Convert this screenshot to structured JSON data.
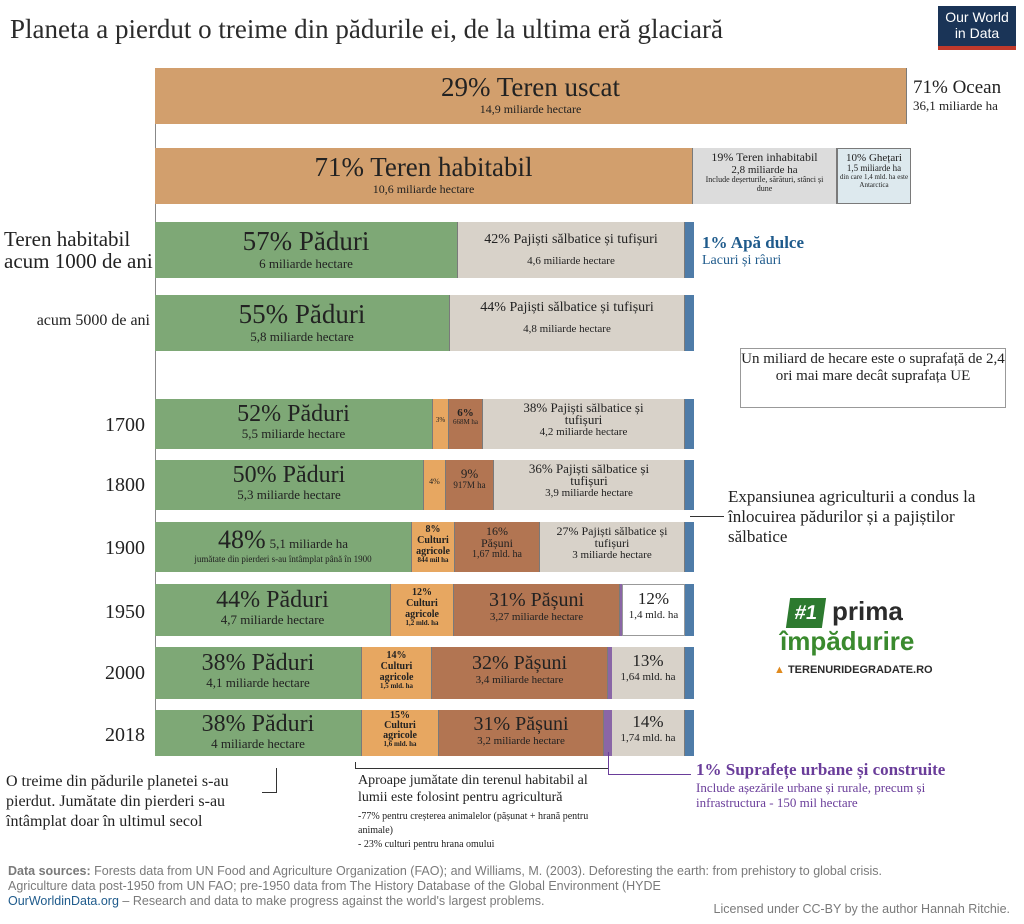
{
  "title": "Planeta a pierdut o treime din pădurile ei, de la ultima eră glaciară",
  "logo": {
    "line1": "Our World",
    "line2": "in Data",
    "bg": "#1a3457",
    "accent": "#c0392b"
  },
  "colors": {
    "land": "#d29f6d",
    "forest": "#7ea876",
    "grass": "#d8d2c9",
    "crops": "#e7a761",
    "pasture": "#b27552",
    "freshwater": "#4f7ca8",
    "urban": "#8a66a6",
    "glaciers": "#dde9ee",
    "uninhabitable": "#dcdcdc"
  },
  "chart_data": {
    "type": "bar",
    "orientation": "horizontal-stacked",
    "rows": [
      {
        "label": "",
        "segments": [
          {
            "name": "Teren uscat",
            "pct": 29,
            "text": "29% Teren uscat",
            "sub": "14,9 miliarde hectare"
          },
          {
            "name": "Ocean",
            "pct": 71,
            "text": "71% Ocean",
            "sub": "36,1 miliarde ha"
          }
        ]
      },
      {
        "label": "",
        "segments": [
          {
            "name": "Teren habitabil",
            "pct": 71,
            "text": "71% Teren habitabil",
            "sub": "10,6 miliarde hectare"
          },
          {
            "name": "Teren inhabitabil",
            "pct": 19,
            "text": "19% Teren inhabitabil",
            "sub": "2,8 miliarde ha",
            "note": "Include deșerturile, sărături, stânci și dune"
          },
          {
            "name": "Ghețari",
            "pct": 10,
            "text": "10% Ghețari",
            "sub": "1,5 miliarde ha",
            "note": "din care 1,4 mld. ha este Antarctica"
          }
        ]
      },
      {
        "label": "Teren habitabil acum 1000 de ani",
        "segments": [
          {
            "name": "Păduri",
            "pct": 57,
            "text": "57% Păduri",
            "sub": "6 miliarde hectare"
          },
          {
            "name": "Pajiști sălbatice și tufișuri",
            "pct": 42,
            "text": "42% Pajiști sălbatice și tufișuri",
            "sub": "4,6 miliarde hectare"
          },
          {
            "name": "Apă dulce",
            "pct": 1
          }
        ]
      },
      {
        "label": "acum 5000 de ani",
        "segments": [
          {
            "name": "Păduri",
            "pct": 55,
            "text": "55% Păduri",
            "sub": "5,8 miliarde hectare"
          },
          {
            "name": "Pajiști sălbatice și tufișuri",
            "pct": 44,
            "text": "44% Pajiști sălbatice și tufișuri",
            "sub": "4,8 miliarde hectare"
          },
          {
            "name": "Apă dulce",
            "pct": 1
          }
        ]
      },
      {
        "label": "1700",
        "segments": [
          {
            "name": "Păduri",
            "pct": 52,
            "text": "52% Păduri",
            "sub": "5,5 miliarde hectare"
          },
          {
            "name": "Culturi agricole",
            "pct": 3,
            "text": "3%"
          },
          {
            "name": "Pășuni",
            "pct": 6,
            "text": "6%",
            "sub": "668M ha"
          },
          {
            "name": "Pajiști sălbatice și tufișuri",
            "pct": 38,
            "text": "38% Pajiști sălbatice și tufișuri",
            "sub": "4,2 miliarde hectare"
          },
          {
            "name": "Apă dulce",
            "pct": 1
          }
        ]
      },
      {
        "label": "1800",
        "segments": [
          {
            "name": "Păduri",
            "pct": 50,
            "text": "50% Păduri",
            "sub": "5,3 miliarde hectare"
          },
          {
            "name": "Culturi agricole",
            "pct": 4,
            "text": "4%"
          },
          {
            "name": "Pășuni",
            "pct": 9,
            "text": "9%",
            "sub": "917M ha"
          },
          {
            "name": "Pajiști sălbatice și tufișuri",
            "pct": 36,
            "text": "36% Pajiști sălbatice și tufișuri",
            "sub": "3,9 miliarde hectare"
          },
          {
            "name": "Apă dulce",
            "pct": 1
          }
        ]
      },
      {
        "label": "1900",
        "segments": [
          {
            "name": "Păduri",
            "pct": 48,
            "text": "48%",
            "text2": "5,1 miliarde ha",
            "sub": "jumătate din pierderi s-au întâmplat până în 1900"
          },
          {
            "name": "Culturi agricole",
            "pct": 8,
            "text": "8% Culturi agricole",
            "sub": "844 mil ha"
          },
          {
            "name": "Pășuni",
            "pct": 16,
            "text": "16% Pășuni",
            "sub": "1,67 mld. ha"
          },
          {
            "name": "Pajiști sălbatice și tufișuri",
            "pct": 27,
            "text": "27% Pajiști sălbatice și tufișuri",
            "sub": "3 miliarde hectare"
          },
          {
            "name": "Apă dulce",
            "pct": 1
          }
        ]
      },
      {
        "label": "1950",
        "segments": [
          {
            "name": "Păduri",
            "pct": 44,
            "text": "44% Păduri",
            "sub": "4,7 miliarde hectare"
          },
          {
            "name": "Culturi agricole",
            "pct": 12,
            "text": "12% Culturi agricole",
            "sub": "1,2 mld. ha"
          },
          {
            "name": "Pășuni",
            "pct": 31,
            "text": "31% Pășuni",
            "sub": "3,27 miliarde hectare"
          },
          {
            "name": "Urban",
            "pct": 0.3
          },
          {
            "name": "Pajiști sălbatice și tufișuri",
            "pct": 12,
            "text": "12%",
            "sub": "1,4 mld. ha"
          },
          {
            "name": "Apă dulce",
            "pct": 1
          }
        ]
      },
      {
        "label": "2000",
        "segments": [
          {
            "name": "Păduri",
            "pct": 38,
            "text": "38% Păduri",
            "sub": "4,1 miliarde hectare"
          },
          {
            "name": "Culturi agricole",
            "pct": 14,
            "text": "14% Culturi agricole",
            "sub": "1,5 mld. ha"
          },
          {
            "name": "Pășuni",
            "pct": 32,
            "text": "32% Pășuni",
            "sub": "3,4 miliarde hectare"
          },
          {
            "name": "Urban",
            "pct": 0.6
          },
          {
            "name": "Pajiști sălbatice și tufișuri",
            "pct": 13,
            "text": "13%",
            "sub": "1,64 mld. ha"
          },
          {
            "name": "Apă dulce",
            "pct": 1
          }
        ]
      },
      {
        "label": "2018",
        "segments": [
          {
            "name": "Păduri",
            "pct": 38,
            "text": "38% Păduri",
            "sub": "4 miliarde hectare"
          },
          {
            "name": "Culturi agricole",
            "pct": 15,
            "text": "15% Culturi agricole",
            "sub": "1,6 mld. ha"
          },
          {
            "name": "Pășuni",
            "pct": 31,
            "text": "31% Pășuni",
            "sub": "3,2 miliarde hectare"
          },
          {
            "name": "Urban",
            "pct": 1
          },
          {
            "name": "Pajiști sălbatice și tufișuri",
            "pct": 14,
            "text": "14%",
            "sub": "1,74 mld. ha"
          },
          {
            "name": "Apă dulce",
            "pct": 1
          }
        ]
      }
    ]
  },
  "annotations": {
    "freshwater_title": "1% Apă dulce",
    "freshwater_sub": "Lacuri și râuri",
    "eu_note": "Un miliard de hecare este o suprafață de 2,4 ori mai mare decât suprafața UE",
    "expansion": "Expansiunea agriculturii a condus la înlocuirea pădurilor și a pajiștilor sălbatice",
    "forest_loss": "O treime din pădurile planetei s-au pierdut. Jumătate din pierderi s-au întâmplat doar în ultimul secol",
    "agri_title": "Aproape jumătate din terenul habitabil al lumii este folosint pentru agricultură",
    "agri_detail1": "-77% pentru creșterea animalelor (pășunat + hrană pentru animale)",
    "agri_detail2": "- 23% culturi pentru hrana omului",
    "urban_title": "1% Suprafețe urbane și construite",
    "urban_sub": "Include așezările urbane și rurale, precum și infrastructura - 150 mil hectare"
  },
  "badge": {
    "number": "#1",
    "line1": "prima",
    "line2": "împădurire",
    "site": "TERENURIDEGRADATE.RO"
  },
  "footer": {
    "sources_label": "Data sources:",
    "sources": "Forests data from UN  Food and Agriculture Organization (FAO); and Williams, M. (2003). Deforesting the earth: from prehistory to global crisis.",
    "sources2": "Agriculture data post-1950 from UN FAO; pre-1950 data from The History Database of the Global Environment (HYDE",
    "site": "OurWorldinData.org",
    "tagline": " – Research and data to make progress against the world's largest problems.",
    "license": "Licensed under CC-BY by the author Hannah Ritchie."
  }
}
